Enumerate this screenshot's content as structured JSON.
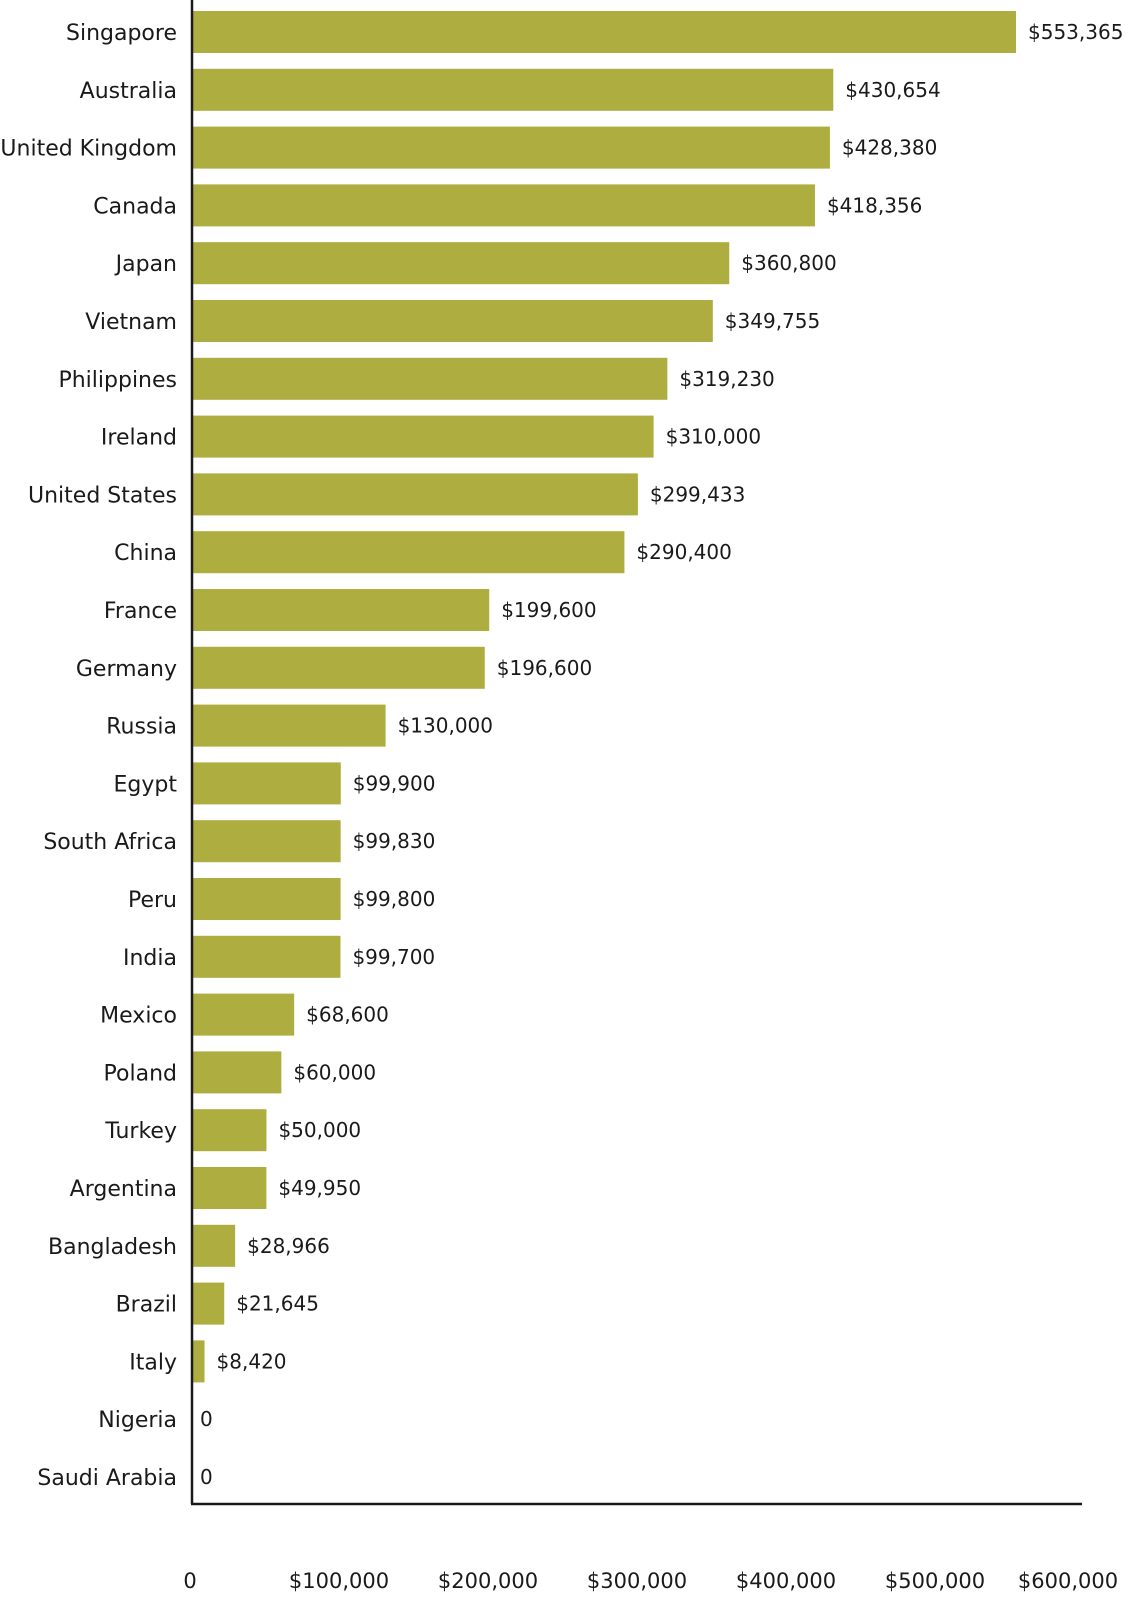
{
  "chart_data": {
    "type": "bar",
    "orientation": "horizontal",
    "bar_color": "#aead40",
    "categories": [
      "Singapore",
      "Australia",
      "United Kingdom",
      "Canada",
      "Japan",
      "Vietnam",
      "Philippines",
      "Ireland",
      "United States",
      "China",
      "France",
      "Germany",
      "Russia",
      "Egypt",
      "South Africa",
      "Peru",
      "India",
      "Mexico",
      "Poland",
      "Turkey",
      "Argentina",
      "Bangladesh",
      "Brazil",
      "Italy",
      "Nigeria",
      "Saudi Arabia"
    ],
    "values": [
      553365,
      430654,
      428380,
      418356,
      360800,
      349755,
      319230,
      310000,
      299433,
      290400,
      199600,
      196600,
      130000,
      99900,
      99830,
      99800,
      99700,
      68600,
      60000,
      50000,
      49950,
      28966,
      21645,
      8420,
      0,
      0
    ],
    "value_labels": [
      "$553,365",
      "$430,654",
      "$428,380",
      "$418,356",
      "$360,800",
      "$349,755",
      "$319,230",
      "$310,000",
      "$299,433",
      "$290,400",
      "$199,600",
      "$196,600",
      "$130,000",
      "$99,900",
      "$99,830",
      "$99,800",
      "$99,700",
      "$68,600",
      "$60,000",
      "$50,000",
      "$49,950",
      "$28,966",
      "$21,645",
      "$8,420",
      "0",
      "0"
    ],
    "x_ticks": [
      0,
      100000,
      200000,
      300000,
      400000,
      500000,
      600000
    ],
    "x_tick_labels": [
      "0",
      "$100,000",
      "$200,000",
      "$300,000",
      "$400,000",
      "$500,000",
      "$600,000"
    ],
    "xlim": [
      0,
      600000
    ],
    "title": "",
    "xlabel": "",
    "ylabel": "",
    "grid": false,
    "legend": "none"
  }
}
